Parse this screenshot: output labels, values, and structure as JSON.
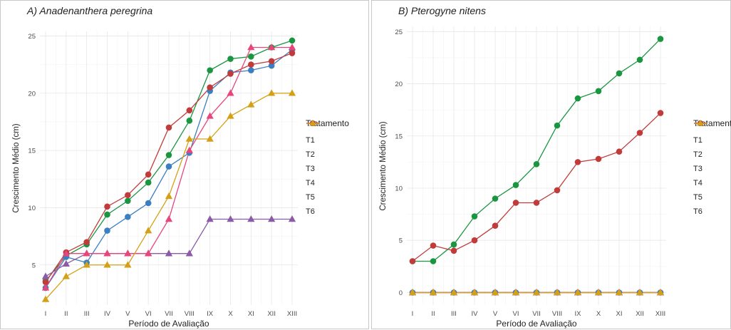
{
  "chart_data": [
    {
      "type": "line",
      "title": "A) Anadenanthera peregrina",
      "xlabel": "Período de Avaliação",
      "ylabel": "Crescimento Médio (cm)",
      "categories": [
        "I",
        "II",
        "III",
        "IV",
        "V",
        "VI",
        "VII",
        "VIII",
        "IX",
        "X",
        "XI",
        "XII",
        "XIII"
      ],
      "ylim": [
        1.5,
        25.4
      ],
      "yticks": [
        5,
        10,
        15,
        20,
        25
      ],
      "grid": true,
      "legend": {
        "title": "Tratamento",
        "position": "right"
      },
      "series": [
        {
          "name": "T1",
          "color": "#1a9641",
          "marker": "circle",
          "values": [
            3.6,
            5.8,
            6.8,
            9.4,
            10.6,
            12.2,
            14.6,
            17.6,
            22.0,
            23.0,
            23.2,
            24.0,
            24.6
          ]
        },
        {
          "name": "T2",
          "color": "#3a7fc1",
          "marker": "circle",
          "values": [
            3.0,
            5.7,
            5.2,
            8.0,
            9.2,
            10.4,
            13.6,
            14.8,
            20.2,
            21.8,
            22.0,
            22.4,
            23.8
          ]
        },
        {
          "name": "T3",
          "color": "#c23b3b",
          "marker": "circle",
          "values": [
            3.5,
            6.1,
            7.0,
            10.1,
            11.1,
            12.9,
            17.0,
            18.5,
            20.5,
            21.7,
            22.5,
            22.8,
            23.5
          ]
        },
        {
          "name": "T4",
          "color": "#8c5ba8",
          "marker": "triangle",
          "values": [
            4.0,
            5.1,
            6.0,
            6.0,
            6.0,
            6.0,
            6.0,
            6.0,
            9.0,
            9.0,
            9.0,
            9.0,
            9.0
          ]
        },
        {
          "name": "T5",
          "color": "#e8457a",
          "marker": "triangle",
          "values": [
            3.0,
            6.0,
            6.0,
            6.0,
            6.0,
            6.0,
            9.0,
            15.0,
            18.0,
            20.0,
            24.0,
            24.0,
            24.0
          ]
        },
        {
          "name": "T6",
          "color": "#d4a017",
          "marker": "triangle",
          "values": [
            2.0,
            4.0,
            5.0,
            5.0,
            5.0,
            8.0,
            11.0,
            16.0,
            16.0,
            18.0,
            19.0,
            20.0,
            20.0
          ]
        }
      ]
    },
    {
      "type": "line",
      "title": "B) Pterogyne nitens",
      "xlabel": "Período de Avaliação",
      "ylabel": "Crescimento Médio (cm)",
      "categories": [
        "I",
        "II",
        "III",
        "IV",
        "V",
        "VI",
        "VII",
        "VIII",
        "IX",
        "X",
        "XI",
        "XII",
        "XIII"
      ],
      "ylim": [
        -1.2,
        25.5
      ],
      "yticks": [
        0,
        5,
        10,
        15,
        20,
        25
      ],
      "grid": true,
      "legend": {
        "title": "Tratamento",
        "position": "right"
      },
      "series": [
        {
          "name": "T1",
          "color": "#1a9641",
          "marker": "circle",
          "values": [
            3.0,
            3.0,
            4.6,
            7.3,
            9.0,
            10.3,
            12.3,
            16.0,
            18.6,
            19.3,
            21.0,
            22.3,
            24.3
          ]
        },
        {
          "name": "T2",
          "color": "#3a7fc1",
          "marker": "circle",
          "values": [
            0,
            0,
            0,
            0,
            0,
            0,
            0,
            0,
            0,
            0,
            0,
            0,
            0
          ]
        },
        {
          "name": "T3",
          "color": "#c23b3b",
          "marker": "circle",
          "values": [
            3.0,
            4.5,
            4.0,
            5.0,
            6.4,
            8.6,
            8.6,
            9.8,
            12.5,
            12.8,
            13.5,
            15.3,
            17.2
          ]
        },
        {
          "name": "T4",
          "color": "#8c5ba8",
          "marker": "triangle",
          "values": [
            0,
            0,
            0,
            0,
            0,
            0,
            0,
            0,
            0,
            0,
            0,
            0,
            0
          ]
        },
        {
          "name": "T5",
          "color": "#e8457a",
          "marker": "triangle",
          "values": [
            0,
            0,
            0,
            0,
            0,
            0,
            0,
            0,
            0,
            0,
            0,
            0,
            0
          ]
        },
        {
          "name": "T6",
          "color": "#d4a017",
          "marker": "triangle",
          "values": [
            0,
            0,
            0,
            0,
            0,
            0,
            0,
            0,
            0,
            0,
            0,
            0,
            0
          ]
        }
      ]
    }
  ]
}
